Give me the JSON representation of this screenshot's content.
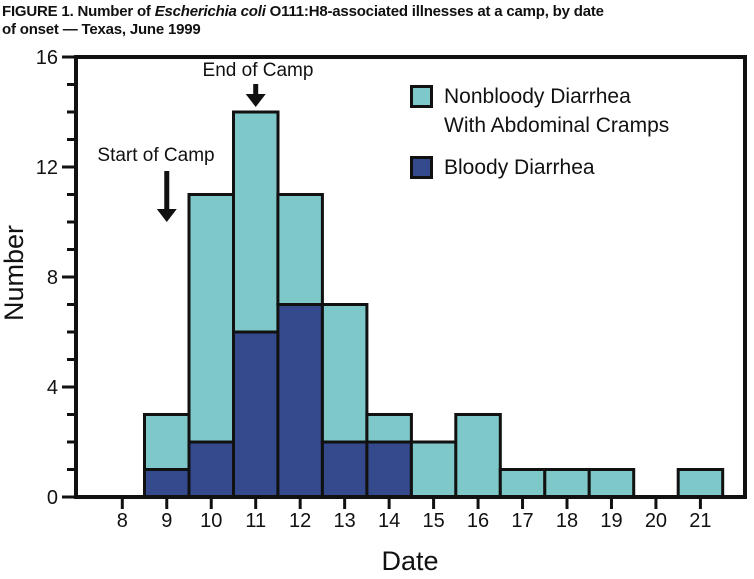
{
  "title": {
    "prefix": "FIGURE 1. Number of ",
    "italic": "Escherichia coli",
    "rest_line1": " O111:H8-associated illnesses at a camp, by date",
    "line2": "of onset — Texas, June 1999"
  },
  "chart_data": {
    "type": "bar",
    "stacked": true,
    "title": "FIGURE 1. Number of Escherichia coli O111:H8-associated illnesses at a camp, by date of onset — Texas, June 1999",
    "xlabel": "Date",
    "ylabel": "Number",
    "ylim": [
      0,
      16
    ],
    "ytick_major_interval": 4,
    "ytick_minor_interval": 1,
    "grid": false,
    "legend_position": "top-right",
    "background": "#FFFFFF",
    "ink_color": "#111111",
    "categories": [
      8,
      9,
      10,
      11,
      12,
      13,
      14,
      15,
      16,
      17,
      18,
      19,
      20,
      21
    ],
    "series": [
      {
        "name": "Bloody Diarrhea",
        "color": "#344A8D",
        "values": [
          0,
          1,
          2,
          6,
          7,
          2,
          2,
          0,
          0,
          0,
          0,
          0,
          0,
          0
        ]
      },
      {
        "name": "Nonbloody Diarrhea With Abdominal Cramps",
        "color": "#7EC8C9",
        "values": [
          0,
          2,
          9,
          8,
          4,
          5,
          1,
          2,
          3,
          1,
          1,
          1,
          0,
          1
        ]
      }
    ],
    "totals": [
      0,
      3,
      11,
      14,
      11,
      7,
      3,
      2,
      3,
      1,
      1,
      1,
      0,
      1
    ],
    "legend": [
      {
        "lines": [
          "Nonbloody Diarrhea",
          "With Abdominal Cramps"
        ],
        "color": "#7EC8C9"
      },
      {
        "lines": [
          "Bloody Diarrhea"
        ],
        "color": "#344A8D"
      }
    ],
    "annotations": [
      {
        "text": "Start of Camp",
        "date": 9
      },
      {
        "text": "End of Camp",
        "date": 11
      }
    ]
  }
}
